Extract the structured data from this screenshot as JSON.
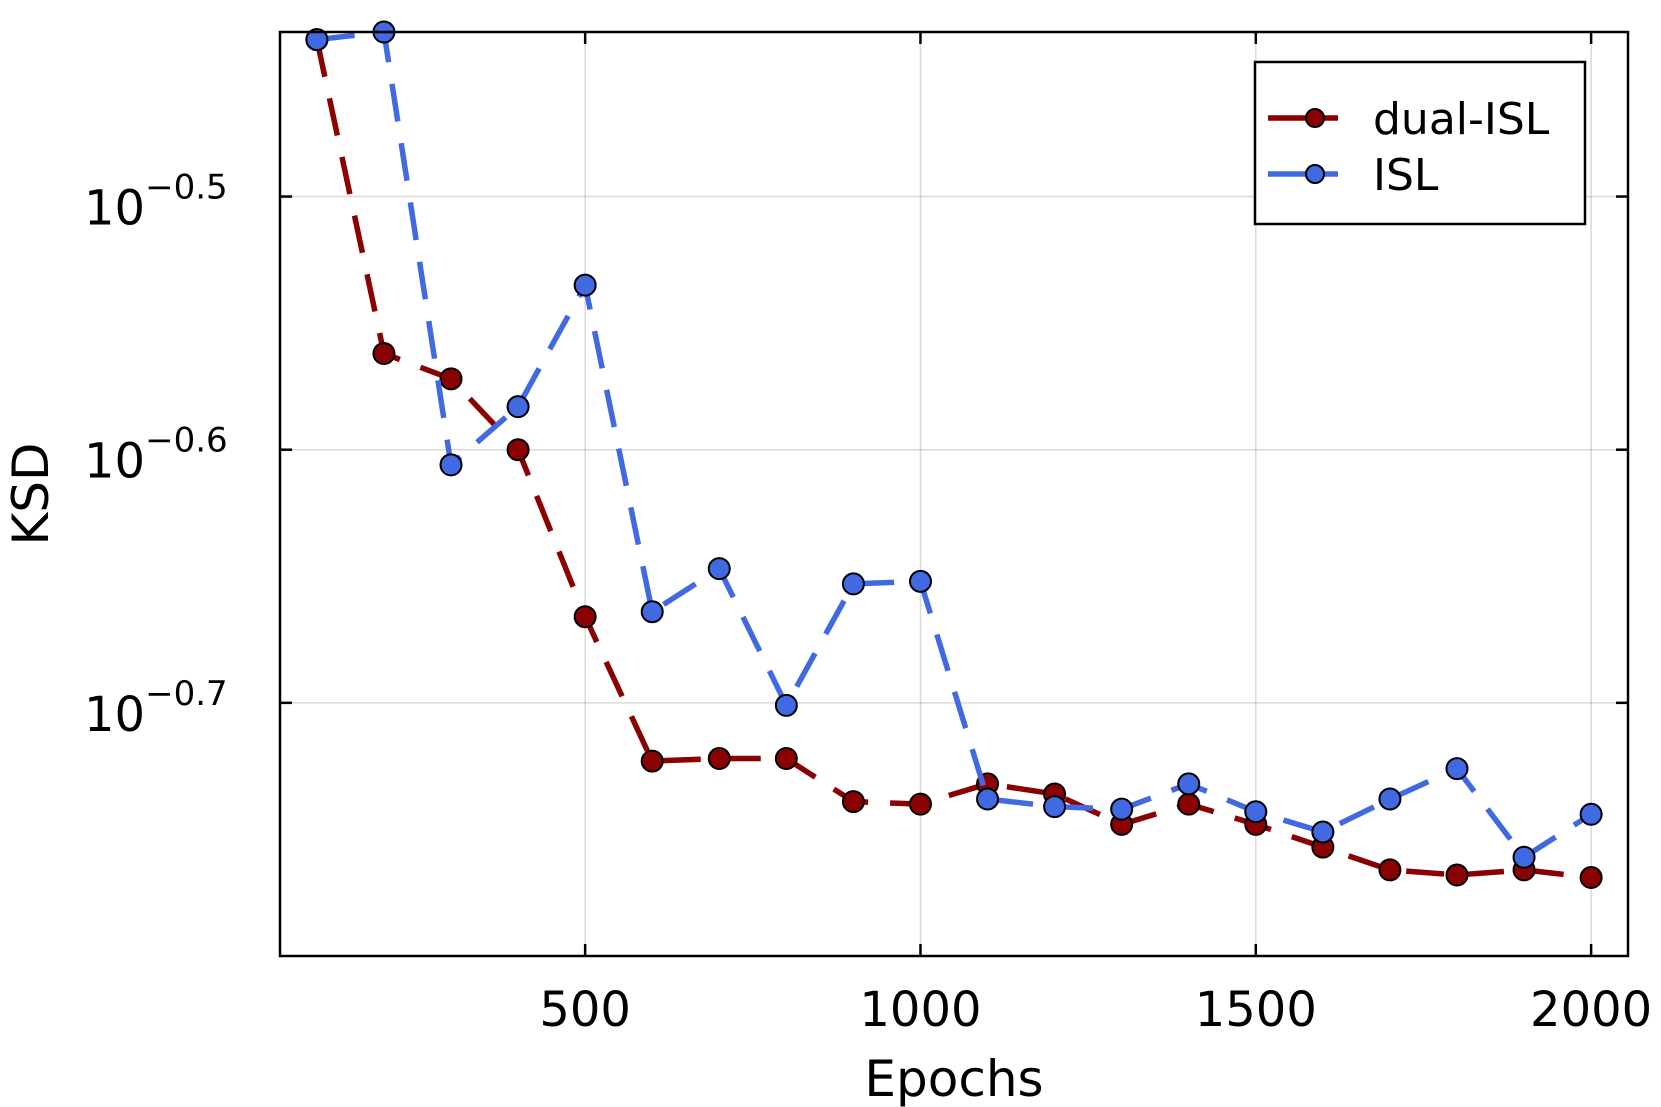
{
  "chart_data": {
    "type": "line",
    "title": "",
    "xlabel": "Epochs",
    "ylabel": "KSD",
    "xlim": [
      45,
      2055
    ],
    "ylim": [
      -0.8,
      -0.435
    ],
    "yscale": "log10",
    "x_ticks": [
      500,
      1000,
      1500,
      2000
    ],
    "y_ticks": [
      {
        "value": -0.5,
        "base": "10",
        "exponent": "−0.5"
      },
      {
        "value": -0.6,
        "base": "10",
        "exponent": "−0.6"
      },
      {
        "value": -0.7,
        "base": "10",
        "exponent": "−0.7"
      }
    ],
    "grid": true,
    "legend_position": "top-right",
    "x": [
      100,
      200,
      300,
      400,
      500,
      600,
      700,
      800,
      900,
      1000,
      1100,
      1200,
      1300,
      1400,
      1500,
      1600,
      1700,
      1800,
      1900,
      2000
    ],
    "series": [
      {
        "name": "dual-ISL",
        "color": "#8b0000",
        "log10_values": [
          -0.438,
          -0.562,
          -0.572,
          -0.6,
          -0.666,
          -0.723,
          -0.722,
          -0.722,
          -0.739,
          -0.74,
          -0.732,
          -0.736,
          -0.748,
          -0.74,
          -0.748,
          -0.757,
          -0.766,
          -0.768,
          -0.766,
          -0.769
        ]
      },
      {
        "name": "ISL",
        "color": "#4169e1",
        "log10_values": [
          -0.438,
          -0.435,
          -0.606,
          -0.583,
          -0.535,
          -0.664,
          -0.647,
          -0.701,
          -0.653,
          -0.652,
          -0.738,
          -0.741,
          -0.742,
          -0.732,
          -0.743,
          -0.751,
          -0.738,
          -0.726,
          -0.761,
          -0.744
        ]
      }
    ]
  }
}
